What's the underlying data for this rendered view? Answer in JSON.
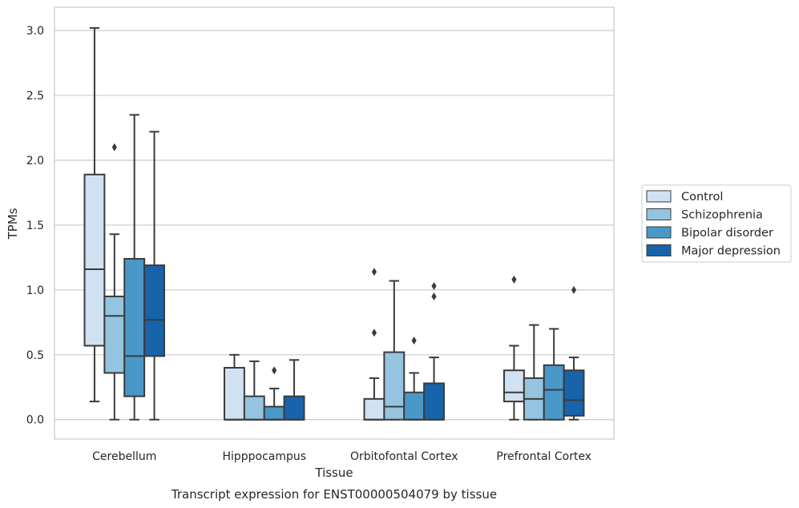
{
  "caption": "Transcript expression for ENST00000504079 by tissue",
  "chart_data": {
    "type": "box",
    "xlabel": "Tissue",
    "ylabel": "TPMs",
    "ylim": [
      -0.15,
      3.18
    ],
    "yticks": [
      0.0,
      0.5,
      1.0,
      1.5,
      2.0,
      2.5,
      3.0
    ],
    "ytick_labels": [
      "0.0",
      "0.5",
      "1.0",
      "1.5",
      "2.0",
      "2.5",
      "3.0"
    ],
    "grid": true,
    "legend_position": "right",
    "categories": [
      "Cerebellum",
      "Hipppocampus",
      "Orbitofontal Cortex",
      "Prefrontal Cortex"
    ],
    "series": [
      {
        "name": "Control",
        "color": "#d0e1f2",
        "boxes": [
          {
            "whislo": 0.14,
            "q1": 0.57,
            "med": 1.16,
            "q3": 1.89,
            "whishi": 3.02,
            "fliers": []
          },
          {
            "whislo": 0.0,
            "q1": 0.0,
            "med": 0.0,
            "q3": 0.4,
            "whishi": 0.5,
            "fliers": []
          },
          {
            "whislo": 0.0,
            "q1": 0.0,
            "med": 0.0,
            "q3": 0.16,
            "whishi": 0.32,
            "fliers": [
              0.67,
              1.14
            ]
          },
          {
            "whislo": 0.0,
            "q1": 0.14,
            "med": 0.21,
            "q3": 0.38,
            "whishi": 0.57,
            "fliers": [
              1.08
            ]
          }
        ]
      },
      {
        "name": "Schizophrenia",
        "color": "#94c4df",
        "boxes": [
          {
            "whislo": 0.0,
            "q1": 0.36,
            "med": 0.8,
            "q3": 0.95,
            "whishi": 1.43,
            "fliers": [
              2.1
            ]
          },
          {
            "whislo": 0.0,
            "q1": 0.0,
            "med": 0.0,
            "q3": 0.18,
            "whishi": 0.45,
            "fliers": []
          },
          {
            "whislo": 0.0,
            "q1": 0.0,
            "med": 0.1,
            "q3": 0.52,
            "whishi": 1.07,
            "fliers": []
          },
          {
            "whislo": 0.0,
            "q1": 0.0,
            "med": 0.16,
            "q3": 0.32,
            "whishi": 0.73,
            "fliers": []
          }
        ]
      },
      {
        "name": "Bipolar disorder",
        "color": "#4a98c9",
        "boxes": [
          {
            "whislo": 0.0,
            "q1": 0.18,
            "med": 0.49,
            "q3": 1.24,
            "whishi": 2.35,
            "fliers": []
          },
          {
            "whislo": 0.0,
            "q1": 0.0,
            "med": 0.0,
            "q3": 0.1,
            "whishi": 0.24,
            "fliers": [
              0.38
            ]
          },
          {
            "whislo": 0.0,
            "q1": 0.0,
            "med": 0.0,
            "q3": 0.21,
            "whishi": 0.36,
            "fliers": [
              0.61
            ]
          },
          {
            "whislo": 0.0,
            "q1": 0.0,
            "med": 0.23,
            "q3": 0.42,
            "whishi": 0.7,
            "fliers": []
          }
        ]
      },
      {
        "name": "Major depression",
        "color": "#1764ab",
        "boxes": [
          {
            "whislo": 0.0,
            "q1": 0.49,
            "med": 0.77,
            "q3": 1.19,
            "whishi": 2.22,
            "fliers": []
          },
          {
            "whislo": 0.0,
            "q1": 0.0,
            "med": 0.0,
            "q3": 0.18,
            "whishi": 0.46,
            "fliers": []
          },
          {
            "whislo": 0.0,
            "q1": 0.0,
            "med": 0.0,
            "q3": 0.28,
            "whishi": 0.48,
            "fliers": [
              0.95,
              1.03
            ]
          },
          {
            "whislo": 0.0,
            "q1": 0.03,
            "med": 0.15,
            "q3": 0.38,
            "whishi": 0.48,
            "fliers": [
              1.0
            ]
          }
        ]
      }
    ]
  }
}
